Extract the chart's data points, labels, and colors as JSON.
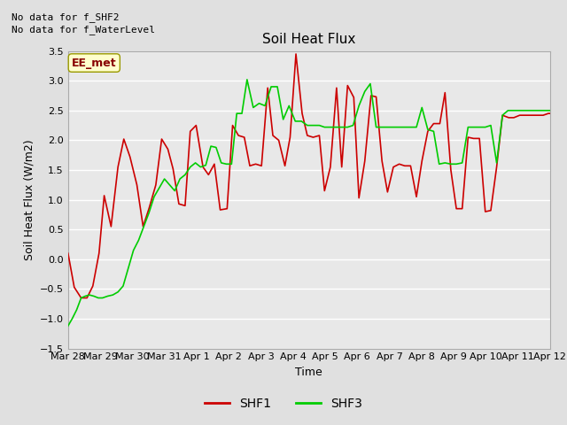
{
  "title": "Soil Heat Flux",
  "xlabel": "Time",
  "ylabel": "Soil Heat Flux (W/m2)",
  "ylim": [
    -1.5,
    3.5
  ],
  "background_color": "#e0e0e0",
  "plot_background": "#e8e8e8",
  "grid_color": "#ffffff",
  "no_data_text": [
    "No data for f_SHF2",
    "No data for f_WaterLevel"
  ],
  "ee_met_label": "EE_met",
  "legend_entries": [
    "SHF1",
    "SHF3"
  ],
  "shf1_color": "#cc0000",
  "shf3_color": "#00cc00",
  "x_tick_labels": [
    "Mar 28",
    "Mar 29",
    "Mar 30",
    "Mar 31",
    "Apr 1",
    "Apr 2",
    "Apr 3",
    "Apr 4",
    "Apr 5",
    "Apr 6",
    "Apr 7",
    "Apr 8",
    "Apr 9",
    "Apr 10",
    "Apr 11",
    "Apr 12"
  ],
  "shf1_x": [
    0.0,
    0.18,
    0.38,
    0.55,
    0.72,
    0.9,
    1.05,
    1.25,
    1.45,
    1.62,
    1.8,
    2.0,
    2.18,
    2.35,
    2.55,
    2.72,
    2.9,
    3.05,
    3.22,
    3.4,
    3.55,
    3.72,
    3.92,
    4.08,
    4.25,
    4.42,
    4.62,
    4.78,
    4.95,
    5.12,
    5.28,
    5.45,
    5.62,
    5.8,
    5.95,
    6.12,
    6.3,
    6.45,
    6.62,
    6.8,
    6.95,
    7.12,
    7.3,
    7.45,
    7.62,
    7.8,
    7.95,
    8.12,
    8.3,
    8.45,
    8.62,
    8.8,
    8.95,
    9.12,
    9.28,
    9.45,
    9.62,
    9.78,
    9.95,
    10.12,
    10.28,
    10.45,
    10.62,
    10.8,
    10.95,
    11.12,
    11.28,
    11.45,
    11.62,
    11.78,
    11.95,
    12.12,
    12.28,
    12.45,
    12.62,
    12.8,
    12.95,
    13.12,
    13.28,
    13.45,
    13.62,
    13.8,
    13.95,
    14.0
  ],
  "shf1_y": [
    0.1,
    -0.47,
    -0.65,
    -0.65,
    -0.45,
    0.1,
    1.07,
    0.55,
    1.55,
    2.02,
    1.72,
    1.25,
    0.55,
    0.85,
    1.25,
    2.02,
    1.85,
    1.52,
    0.93,
    0.9,
    2.15,
    2.25,
    1.55,
    1.42,
    1.6,
    0.83,
    0.85,
    2.25,
    2.08,
    2.05,
    1.57,
    1.6,
    1.57,
    2.88,
    2.08,
    2.0,
    1.57,
    2.05,
    3.45,
    2.45,
    2.08,
    2.05,
    2.08,
    1.15,
    1.55,
    2.88,
    1.55,
    2.92,
    2.72,
    1.03,
    1.65,
    2.75,
    2.73,
    1.65,
    1.13,
    1.55,
    1.6,
    1.57,
    1.57,
    1.05,
    1.65,
    2.15,
    2.28,
    2.28,
    2.8,
    1.5,
    0.85,
    0.85,
    2.05,
    2.03,
    2.03,
    0.8,
    0.82,
    1.55,
    2.42,
    2.38,
    2.38,
    2.42,
    2.42,
    2.42,
    2.42,
    2.42,
    2.45,
    2.45
  ],
  "shf3_x": [
    0.0,
    0.12,
    0.25,
    0.38,
    0.5,
    0.62,
    0.75,
    0.88,
    1.0,
    1.15,
    1.3,
    1.45,
    1.6,
    1.75,
    1.9,
    2.05,
    2.2,
    2.35,
    2.5,
    2.65,
    2.8,
    2.95,
    3.1,
    3.25,
    3.4,
    3.55,
    3.7,
    3.85,
    4.0,
    4.15,
    4.3,
    4.45,
    4.6,
    4.75,
    4.9,
    5.05,
    5.2,
    5.38,
    5.55,
    5.72,
    5.9,
    6.08,
    6.25,
    6.42,
    6.6,
    6.78,
    6.95,
    7.12,
    7.3,
    7.45,
    7.62,
    7.78,
    7.95,
    8.12,
    8.28,
    8.45,
    8.62,
    8.78,
    8.95,
    9.12,
    9.28,
    9.45,
    9.62,
    9.78,
    9.95,
    10.12,
    10.28,
    10.45,
    10.62,
    10.78,
    10.95,
    11.12,
    11.28,
    11.45,
    11.62,
    11.78,
    11.95,
    12.12,
    12.28,
    12.45,
    12.62,
    12.78,
    12.95,
    13.12,
    13.28,
    13.45,
    13.62,
    13.78,
    13.95,
    14.0
  ],
  "shf3_y": [
    -1.12,
    -1.0,
    -0.85,
    -0.65,
    -0.62,
    -0.6,
    -0.62,
    -0.65,
    -0.65,
    -0.62,
    -0.6,
    -0.55,
    -0.45,
    -0.15,
    0.15,
    0.32,
    0.55,
    0.78,
    1.05,
    1.2,
    1.35,
    1.25,
    1.15,
    1.35,
    1.42,
    1.55,
    1.62,
    1.55,
    1.58,
    1.9,
    1.88,
    1.62,
    1.6,
    1.6,
    2.45,
    2.45,
    3.02,
    2.55,
    2.62,
    2.58,
    2.9,
    2.9,
    2.35,
    2.58,
    2.32,
    2.32,
    2.25,
    2.25,
    2.25,
    2.22,
    2.22,
    2.22,
    2.22,
    2.22,
    2.25,
    2.58,
    2.82,
    2.95,
    2.22,
    2.22,
    2.22,
    2.22,
    2.22,
    2.22,
    2.22,
    2.22,
    2.55,
    2.18,
    2.15,
    1.6,
    1.62,
    1.6,
    1.6,
    1.62,
    2.22,
    2.22,
    2.22,
    2.22,
    2.25,
    1.62,
    2.42,
    2.5,
    2.5,
    2.5,
    2.5,
    2.5,
    2.5,
    2.5,
    2.5,
    2.5
  ]
}
